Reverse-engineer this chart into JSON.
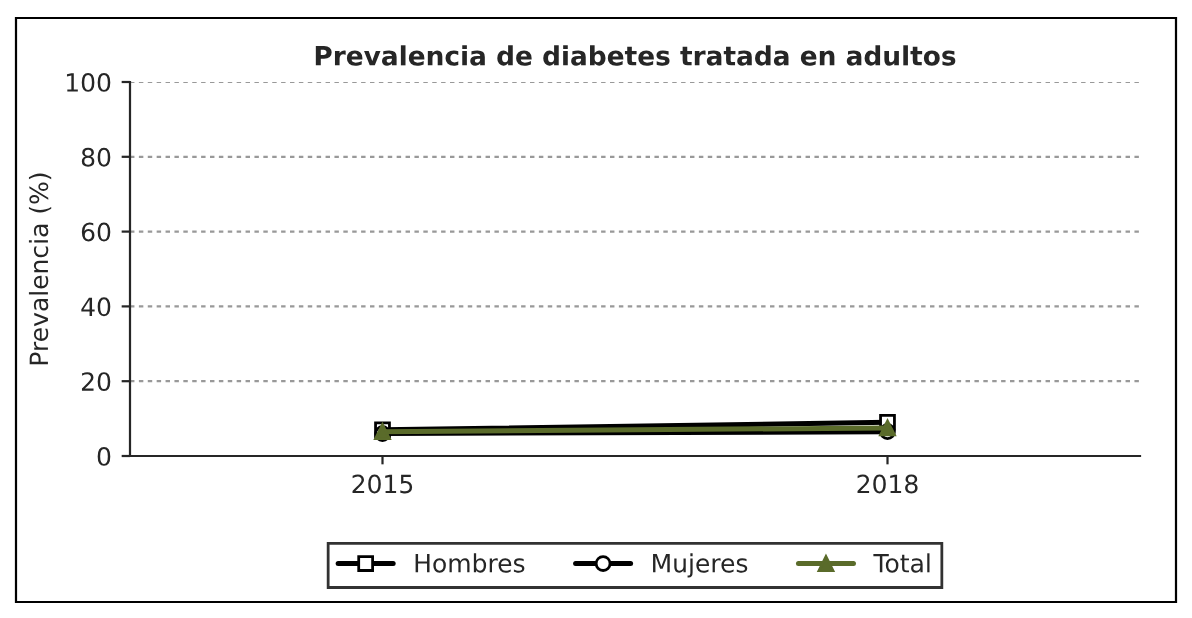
{
  "chart_data": {
    "type": "line",
    "title": "Prevalencia de diabetes tratada en adultos",
    "ylabel": "Prevalencia (%)",
    "categories": [
      "2015",
      "2018"
    ],
    "series": [
      {
        "name": "Hombres",
        "color": "#000000",
        "marker": "square",
        "values": [
          7,
          9
        ]
      },
      {
        "name": "Mujeres",
        "color": "#000000",
        "marker": "circle",
        "values": [
          6,
          6.5
        ]
      },
      {
        "name": "Total",
        "color": "#5a6b2a",
        "marker": "triangle",
        "values": [
          6.5,
          7.5
        ]
      }
    ],
    "ylim": [
      0,
      100
    ],
    "yticks": [
      0,
      20,
      40,
      60,
      80,
      100
    ],
    "grid": "y",
    "legend": "bottom",
    "line_style": "solid"
  }
}
